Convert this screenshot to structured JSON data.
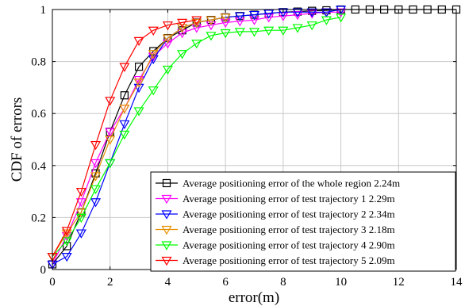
{
  "chart_data": {
    "type": "line",
    "title": "",
    "xlabel": "error(m)",
    "ylabel": "CDF of errors",
    "xlim": [
      0,
      14
    ],
    "ylim": [
      0,
      1
    ],
    "xticks": [
      "0",
      "2",
      "4",
      "6",
      "8",
      "10",
      "12",
      "14"
    ],
    "yticks": [
      "0",
      "0.2",
      "0.4",
      "0.6",
      "0.8",
      "1"
    ],
    "grid": true,
    "legend_position": "bottom-right",
    "series": [
      {
        "name": "Average positioning error of the whole region 2.24m",
        "color": "#000000",
        "marker": "square",
        "x": [
          0,
          0.5,
          1,
          1.5,
          2,
          2.5,
          3,
          3.5,
          4,
          4.5,
          5,
          5.5,
          6,
          6.5,
          7,
          7.5,
          8,
          8.5,
          9,
          9.5,
          10,
          10.5,
          11,
          11.5,
          12,
          12.5,
          13,
          13.5,
          14
        ],
        "y": [
          0.02,
          0.09,
          0.22,
          0.37,
          0.53,
          0.67,
          0.78,
          0.84,
          0.89,
          0.92,
          0.95,
          0.96,
          0.97,
          0.975,
          0.98,
          0.985,
          0.99,
          0.992,
          0.995,
          0.997,
          1.0,
          1.0,
          1.0,
          1.0,
          1.0,
          1.0,
          1.0,
          1.0,
          1.0
        ]
      },
      {
        "name": "Average positioning error of test trajectory 1 2.29m",
        "color": "#ff00ff",
        "marker": "triangle-down",
        "x": [
          0,
          0.5,
          1,
          1.5,
          2,
          2.5,
          3,
          3.5,
          4,
          4.5,
          5,
          5.5,
          6,
          6.5,
          7,
          7.5,
          8,
          8.5,
          9,
          9.5,
          10
        ],
        "y": [
          0.02,
          0.13,
          0.26,
          0.41,
          0.53,
          0.62,
          0.73,
          0.82,
          0.87,
          0.91,
          0.93,
          0.94,
          0.95,
          0.955,
          0.96,
          0.97,
          0.975,
          0.98,
          0.985,
          0.99,
          0.99
        ]
      },
      {
        "name": "Average positioning error of test trajectory 2 2.34m",
        "color": "#0000ff",
        "marker": "triangle-down",
        "x": [
          0,
          0.5,
          1,
          1.5,
          2,
          2.5,
          3,
          3.5,
          4,
          4.5,
          5,
          5.5,
          6,
          6.5,
          7,
          7.5,
          8,
          8.5,
          9,
          9.5,
          10
        ],
        "y": [
          0.02,
          0.05,
          0.14,
          0.26,
          0.41,
          0.56,
          0.7,
          0.81,
          0.89,
          0.93,
          0.95,
          0.96,
          0.97,
          0.975,
          0.98,
          0.985,
          0.99,
          0.99,
          0.99,
          0.99,
          1.0
        ]
      },
      {
        "name": "Average positioning error of test trajectory 3 2.18m",
        "color": "#e69100",
        "marker": "triangle-down",
        "x": [
          0,
          0.5,
          1,
          1.5,
          2,
          2.5,
          3,
          3.5,
          4,
          4.5,
          5,
          5.5,
          6
        ],
        "y": [
          0.05,
          0.14,
          0.22,
          0.36,
          0.5,
          0.62,
          0.72,
          0.83,
          0.89,
          0.93,
          0.95,
          0.96,
          0.97
        ]
      },
      {
        "name": "Average positioning error of test trajectory 4 2.90m",
        "color": "#00ff00",
        "marker": "triangle-down",
        "x": [
          0,
          0.5,
          1,
          1.5,
          2,
          2.5,
          3,
          3.5,
          4,
          4.5,
          5,
          5.5,
          6,
          6.5,
          7,
          7.5,
          8,
          8.5,
          9,
          9.5,
          10
        ],
        "y": [
          0.05,
          0.11,
          0.2,
          0.31,
          0.41,
          0.52,
          0.61,
          0.69,
          0.77,
          0.83,
          0.87,
          0.9,
          0.91,
          0.915,
          0.915,
          0.92,
          0.92,
          0.93,
          0.94,
          0.96,
          0.97
        ]
      },
      {
        "name": "Average positioning error of test trajectory 5 2.09m",
        "color": "#ff0000",
        "marker": "triangle-down",
        "x": [
          0,
          0.5,
          1,
          1.5,
          2,
          2.5,
          3,
          3.5,
          4,
          4.5,
          5
        ],
        "y": [
          0.05,
          0.15,
          0.3,
          0.48,
          0.65,
          0.78,
          0.88,
          0.92,
          0.94,
          0.95,
          0.96
        ]
      }
    ]
  }
}
